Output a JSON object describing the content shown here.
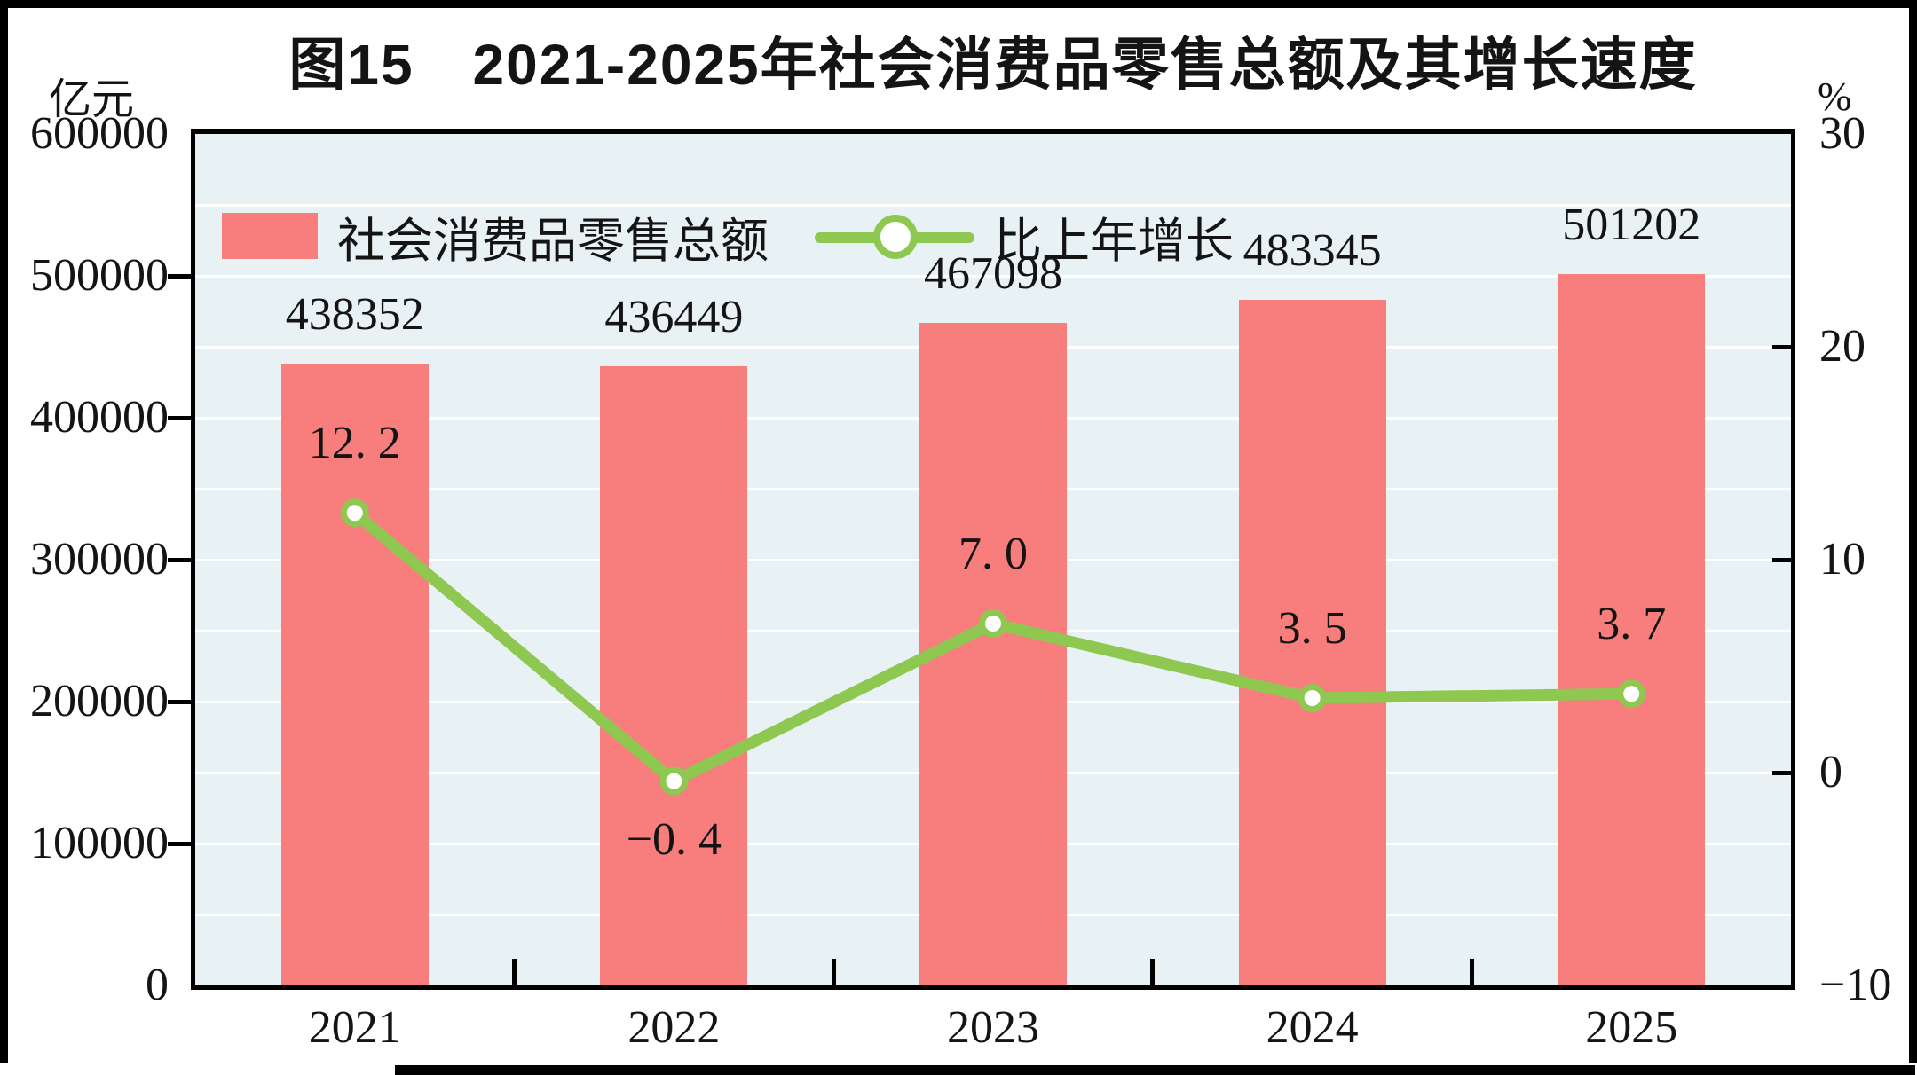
{
  "page": {
    "title": "图15　2021-2025年社会消费品零售总额及其增长速度",
    "left_axis_unit": "亿元",
    "right_axis_unit": "%"
  },
  "legend": [
    {
      "label": "社会消费品零售总额",
      "type": "bar",
      "color": "#F87D7D"
    },
    {
      "label": "比上年增长",
      "type": "line",
      "color": "#8FC850"
    }
  ],
  "chart_data": {
    "type": "bar+line",
    "title": "图15　2021-2025年社会消费品零售总额及其增长速度",
    "categories": [
      "2021",
      "2022",
      "2023",
      "2024",
      "2025"
    ],
    "series": [
      {
        "name": "社会消费品零售总额",
        "type": "bar",
        "axis": "left",
        "color": "#F87D7D",
        "values": [
          438352,
          436449,
          467098,
          483345,
          501202
        ],
        "labels": [
          "438352",
          "436449",
          "467098",
          "483345",
          "501202"
        ]
      },
      {
        "name": "比上年增长",
        "type": "line",
        "axis": "right",
        "color": "#8FC850",
        "marker": "circle-white",
        "values": [
          12.2,
          -0.4,
          7.0,
          3.5,
          3.7
        ],
        "labels": [
          "12. 2",
          "−0. 4",
          "7. 0",
          "3. 5",
          "3. 7"
        ],
        "label_sides": [
          "above",
          "below",
          "above",
          "above",
          "above"
        ]
      }
    ],
    "left_axis": {
      "title": "亿元",
      "min": 0,
      "max": 600000,
      "tick_step": 100000,
      "ticks": [
        "600000",
        "500000",
        "400000",
        "300000",
        "200000",
        "100000",
        "0"
      ]
    },
    "right_axis": {
      "title": "%",
      "min": -10,
      "max": 30,
      "tick_step": 10,
      "ticks": [
        "30",
        "20",
        "10",
        "0",
        "−10"
      ]
    },
    "grid": {
      "on": true,
      "step_left_axis": 50000,
      "color": "#FFFFFF"
    },
    "plot_bg": "#E8F1F4",
    "legend_position": "top-left-inside"
  }
}
